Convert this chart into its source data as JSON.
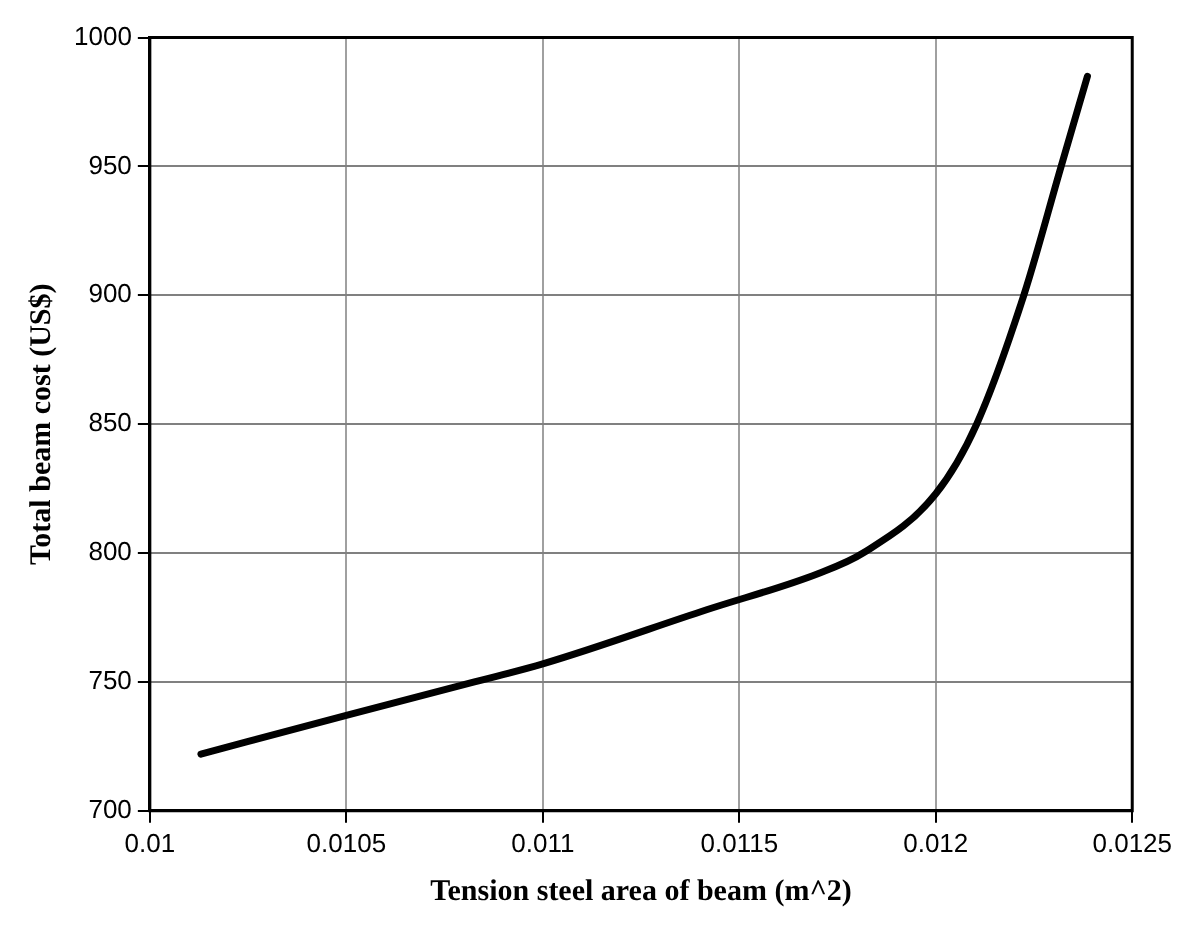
{
  "chart_data": {
    "type": "line",
    "xlabel": "Tension steel area of beam (m^2)",
    "ylabel": "Total beam cost (US$)",
    "series": [
      {
        "color": "#000000",
        "x": [
          0.01013,
          0.0105,
          0.010826,
          0.011,
          0.011417,
          0.0117,
          0.011815,
          0.012,
          0.012104,
          0.012224,
          0.012319,
          0.012386
        ],
        "values": [
          722,
          737,
          750,
          757,
          778,
          792,
          800,
          823,
          850,
          900,
          950,
          985
        ]
      }
    ],
    "xlim": [
      0.01,
      0.0125
    ],
    "xticks": [
      0.01,
      0.0105,
      0.011,
      0.0115,
      0.012,
      0.0125
    ],
    "ylim": [
      700,
      1000
    ],
    "yticks": [
      700,
      750,
      800,
      850,
      900,
      950,
      1000
    ],
    "grid": true,
    "legend": false,
    "marker": "none",
    "line_style": "solid"
  }
}
